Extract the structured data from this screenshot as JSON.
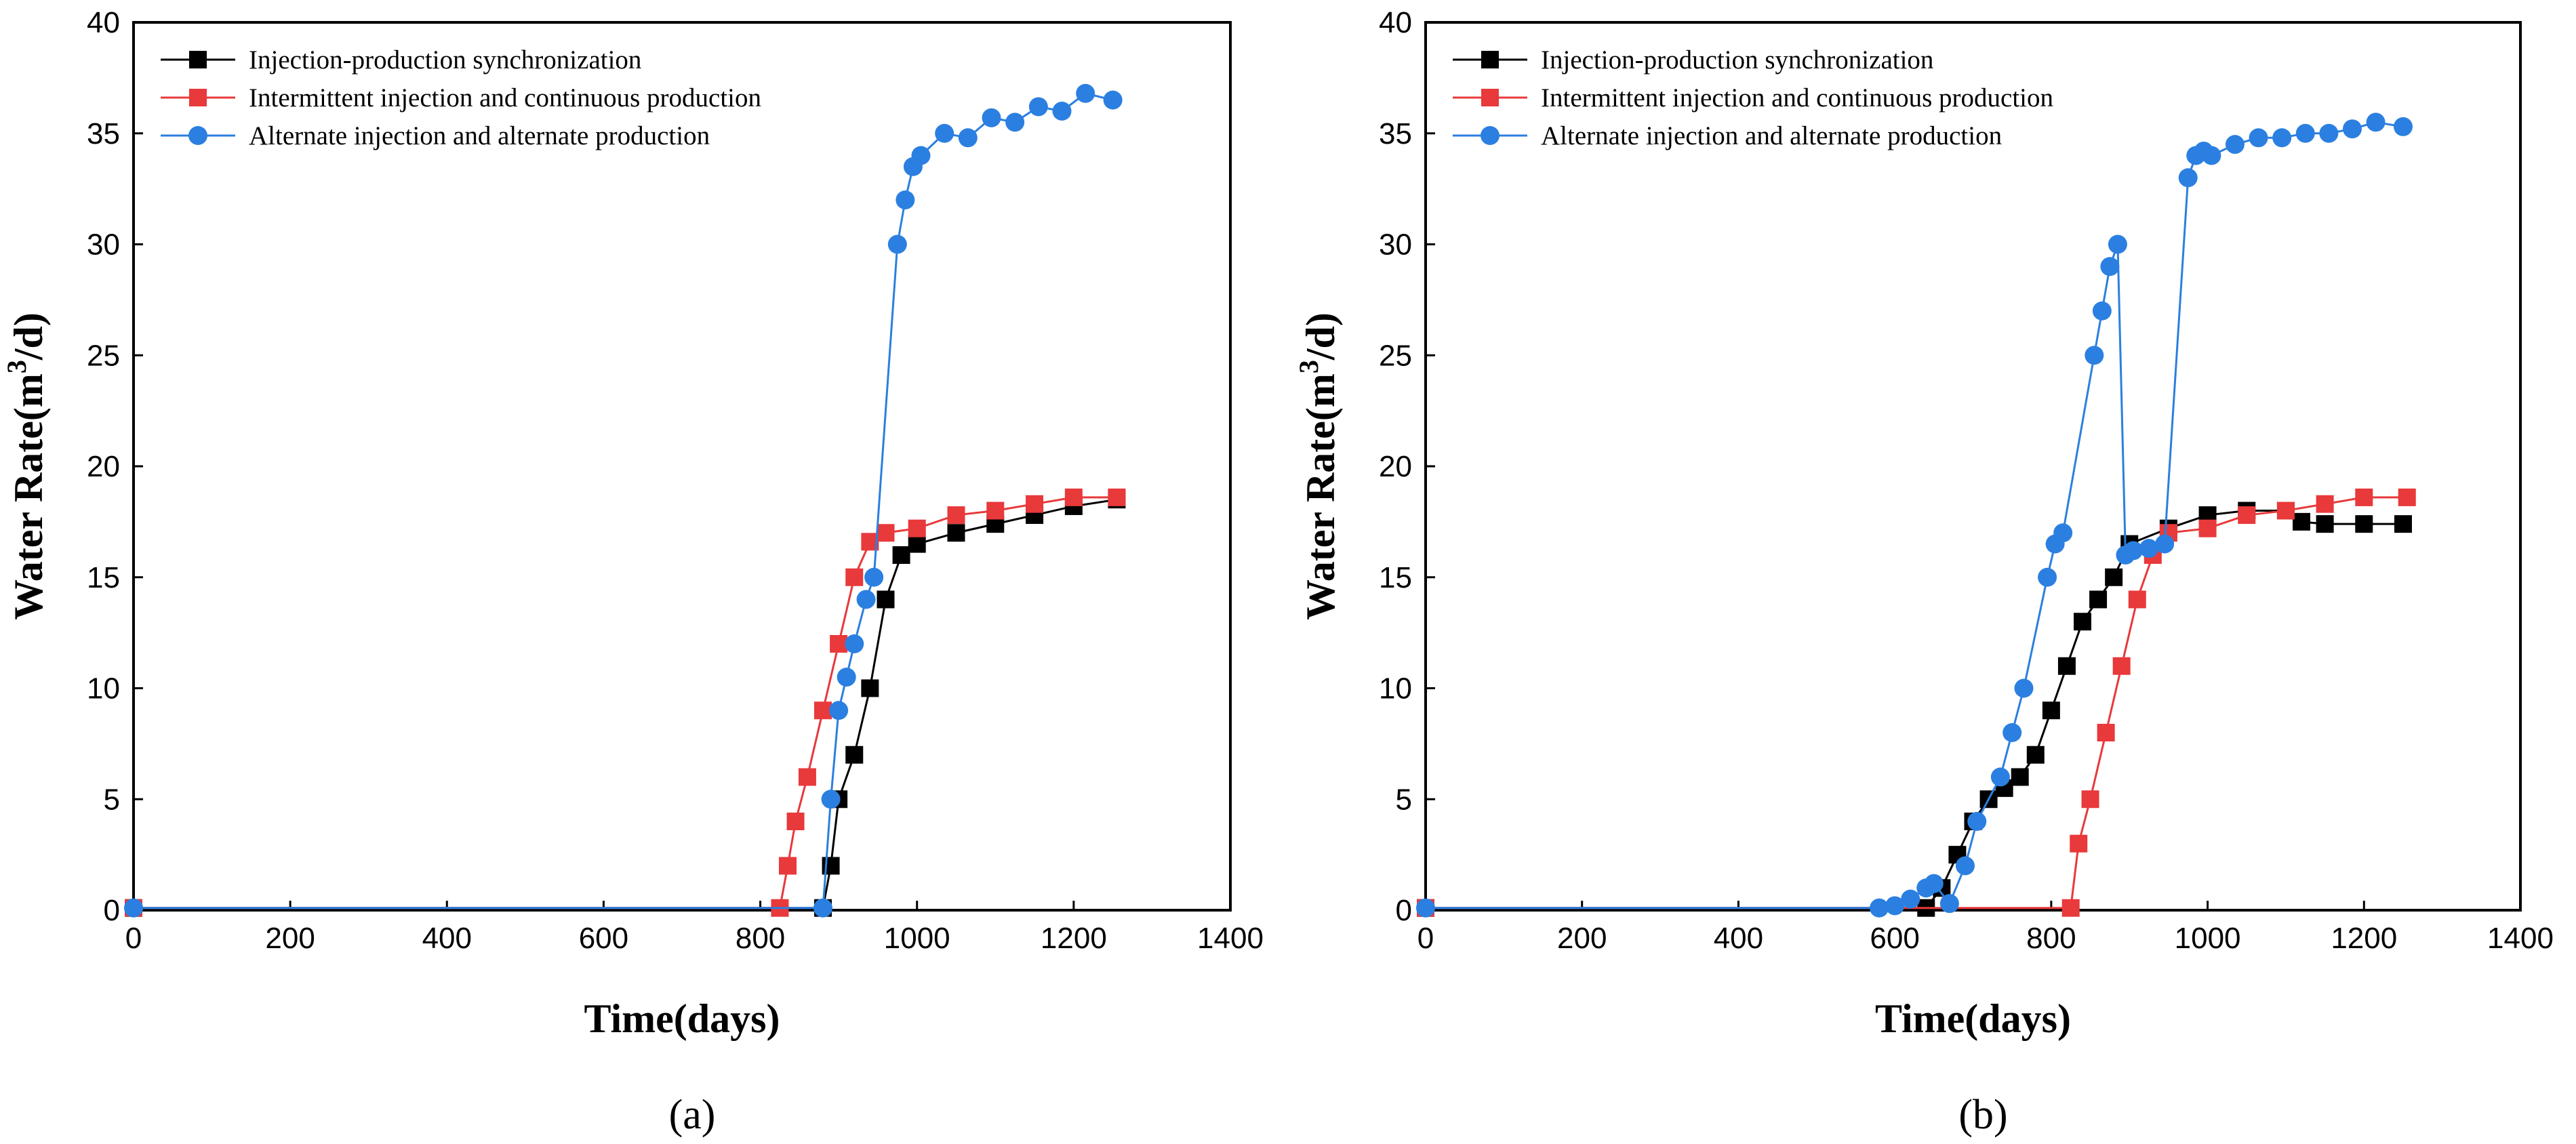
{
  "colors": {
    "sync": "#000000",
    "intermittent": "#e8393b",
    "alternate": "#2b7fe0"
  },
  "chart_data": [
    {
      "type": "scatter",
      "panel_label": "(a)",
      "xlabel": "Time(days)",
      "ylabel_main": "Water Rate(m",
      "ylabel_sup": "3",
      "ylabel_tail": "/d)",
      "xlim": [
        0,
        1400
      ],
      "ylim": [
        0,
        40
      ],
      "xticks": [
        "0",
        "200",
        "400",
        "600",
        "800",
        "1000",
        "1200",
        "1400"
      ],
      "yticks": [
        "0",
        "5",
        "10",
        "15",
        "20",
        "25",
        "30",
        "35",
        "40"
      ],
      "legend_position": "top-left",
      "series": [
        {
          "key": "sync",
          "name": "Injection-production synchronization",
          "marker": "square",
          "x": [
            0,
            880,
            890,
            900,
            920,
            940,
            960,
            980,
            1000,
            1050,
            1100,
            1150,
            1200,
            1255
          ],
          "y": [
            0.1,
            0.1,
            2,
            5,
            7,
            10,
            14,
            16,
            16.5,
            17,
            17.4,
            17.8,
            18.2,
            18.5
          ]
        },
        {
          "key": "intermittent",
          "name": "Intermittent injection and continuous production",
          "marker": "square",
          "x": [
            0,
            825,
            835,
            845,
            860,
            880,
            900,
            920,
            940,
            960,
            1000,
            1050,
            1100,
            1150,
            1200,
            1255
          ],
          "y": [
            0.1,
            0.1,
            2,
            4,
            6,
            9,
            12,
            15,
            16.6,
            17,
            17.2,
            17.8,
            18,
            18.3,
            18.6,
            18.6
          ]
        },
        {
          "key": "alternate",
          "name": "Alternate injection and alternate production",
          "marker": "circle",
          "x": [
            0,
            880,
            890,
            900,
            910,
            920,
            935,
            945,
            975,
            985,
            995,
            1005,
            1035,
            1065,
            1095,
            1125,
            1155,
            1185,
            1215,
            1250
          ],
          "y": [
            0.1,
            0.1,
            5,
            9,
            10.5,
            12,
            14,
            15,
            30,
            32,
            33.5,
            34,
            35,
            34.8,
            35.7,
            35.5,
            36.2,
            36,
            36.8,
            36.5
          ]
        }
      ]
    },
    {
      "type": "scatter",
      "panel_label": "(b)",
      "xlabel": "Time(days)",
      "ylabel_main": "Water Rate(m",
      "ylabel_sup": "3",
      "ylabel_tail": "/d)",
      "xlim": [
        0,
        1400
      ],
      "ylim": [
        0,
        40
      ],
      "xticks": [
        "0",
        "200",
        "400",
        "600",
        "800",
        "1000",
        "1200",
        "1400"
      ],
      "yticks": [
        "0",
        "5",
        "10",
        "15",
        "20",
        "25",
        "30",
        "35",
        "40"
      ],
      "legend_position": "top-left",
      "series": [
        {
          "key": "sync",
          "name": "Injection-production synchronization",
          "marker": "square",
          "x": [
            0,
            640,
            660,
            680,
            700,
            720,
            740,
            760,
            780,
            800,
            820,
            840,
            860,
            880,
            900,
            950,
            1000,
            1050,
            1100,
            1120,
            1150,
            1200,
            1250
          ],
          "y": [
            0.1,
            0.1,
            1,
            2.5,
            4,
            5,
            5.5,
            6,
            7,
            9,
            11,
            13,
            14,
            15,
            16.5,
            17.2,
            17.8,
            18,
            18,
            17.5,
            17.4,
            17.4,
            17.4
          ]
        },
        {
          "key": "intermittent",
          "name": "Intermittent injection and continuous production",
          "marker": "square",
          "x": [
            0,
            825,
            835,
            850,
            870,
            890,
            910,
            930,
            950,
            1000,
            1050,
            1100,
            1150,
            1200,
            1255
          ],
          "y": [
            0.1,
            0.1,
            3,
            5,
            8,
            11,
            14,
            16,
            17,
            17.2,
            17.8,
            18,
            18.3,
            18.6,
            18.6
          ]
        },
        {
          "key": "alternate",
          "name": "Alternate injection and alternate production",
          "marker": "circle",
          "x": [
            0,
            580,
            600,
            620,
            640,
            650,
            670,
            690,
            705,
            735,
            750,
            765,
            795,
            805,
            815,
            855,
            865,
            875,
            885,
            895,
            905,
            925,
            945,
            975,
            985,
            995,
            1005,
            1035,
            1065,
            1095,
            1125,
            1155,
            1185,
            1215,
            1250
          ],
          "y": [
            0.1,
            0.1,
            0.2,
            0.5,
            1,
            1.2,
            0.3,
            2,
            4,
            6,
            8,
            10,
            15,
            16.5,
            17,
            25,
            27,
            29,
            30,
            16,
            16.2,
            16.3,
            16.5,
            33,
            34,
            34.2,
            34,
            34.5,
            34.8,
            34.8,
            35,
            35,
            35.2,
            35.5,
            35.3
          ]
        }
      ]
    }
  ]
}
